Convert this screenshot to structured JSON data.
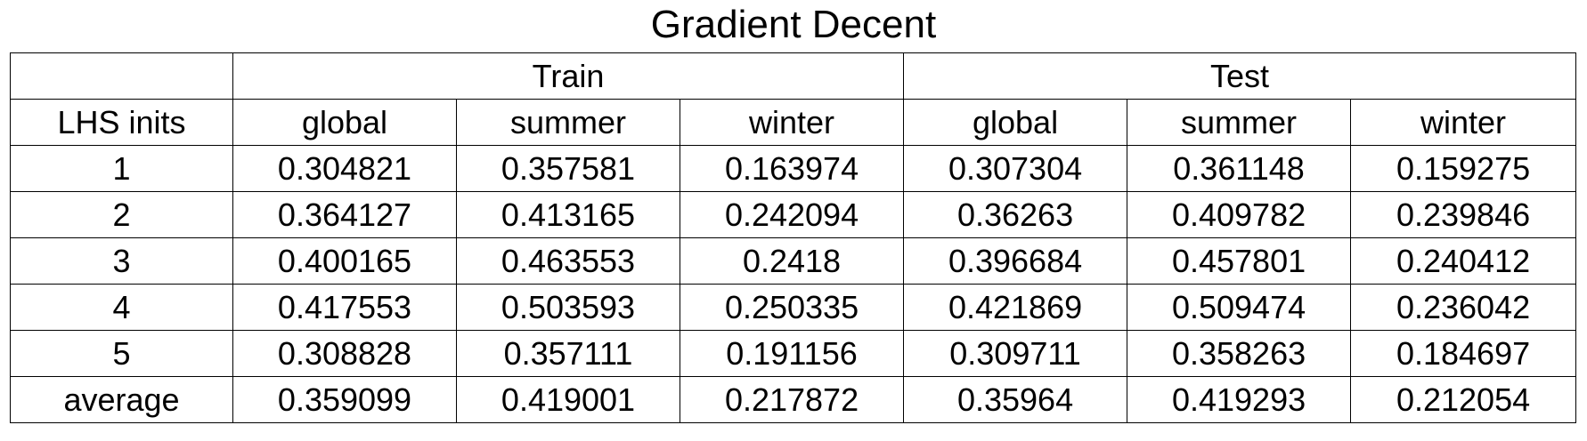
{
  "title": "Gradient Decent",
  "groups": {
    "empty": "",
    "train": "Train",
    "test": "Test"
  },
  "columns": [
    "LHS inits",
    "global",
    "summer",
    "winter",
    "global",
    "summer",
    "winter"
  ],
  "rows": [
    [
      "1",
      "0.304821",
      "0.357581",
      "0.163974",
      "0.307304",
      "0.361148",
      "0.159275"
    ],
    [
      "2",
      "0.364127",
      "0.413165",
      "0.242094",
      "0.36263",
      "0.409782",
      "0.239846"
    ],
    [
      "3",
      "0.400165",
      "0.463553",
      "0.2418",
      "0.396684",
      "0.457801",
      "0.240412"
    ],
    [
      "4",
      "0.417553",
      "0.503593",
      "0.250335",
      "0.421869",
      "0.509474",
      "0.236042"
    ],
    [
      "5",
      "0.308828",
      "0.357111",
      "0.191156",
      "0.309711",
      "0.358263",
      "0.184697"
    ],
    [
      "average",
      "0.359099",
      "0.419001",
      "0.217872",
      "0.35964",
      "0.419293",
      "0.212054"
    ]
  ]
}
